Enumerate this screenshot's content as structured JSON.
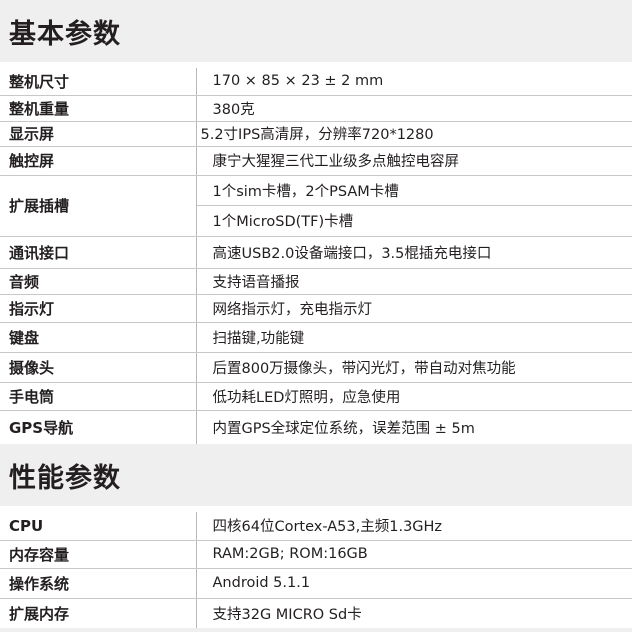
{
  "sections": [
    {
      "title": "基本参数",
      "rows": [
        {
          "label": "整机尺寸",
          "values": [
            "170 × 85 × 23 ± 2 mm"
          ]
        },
        {
          "label": "整机重量",
          "values": [
            "380克"
          ]
        },
        {
          "label": "显示屏",
          "values": [
            "5.2寸IPS高清屏，分辨率720*1280"
          ]
        },
        {
          "label": "触控屏",
          "values": [
            "康宁大猩猩三代工业级多点触控电容屏"
          ]
        },
        {
          "label": "扩展插槽",
          "values": [
            "1个sim卡槽，2个PSAM卡槽",
            "1个MicroSD(TF)卡槽"
          ]
        },
        {
          "label": "通讯接口",
          "values": [
            "高速USB2.0设备端接口，3.5棍插充电接口"
          ]
        },
        {
          "label": "音频",
          "values": [
            "支持语音播报"
          ]
        },
        {
          "label": "指示灯",
          "values": [
            "网络指示灯，充电指示灯"
          ]
        },
        {
          "label": "键盘",
          "values": [
            "扫描键,功能键"
          ]
        },
        {
          "label": "摄像头",
          "values": [
            "后置800万摄像头，带闪光灯，带自动对焦功能"
          ]
        },
        {
          "label": "手电筒",
          "values": [
            "低功耗LED灯照明，应急使用"
          ]
        },
        {
          "label": "GPS导航",
          "values": [
            "内置GPS全球定位系统，误差范围 ± 5m"
          ]
        }
      ]
    },
    {
      "title": "性能参数",
      "rows": [
        {
          "label": "CPU",
          "values": [
            "四核64位Cortex-A53,主频1.3GHz"
          ]
        },
        {
          "label": "内存容量",
          "values": [
            "RAM:2GB; ROM:16GB"
          ]
        },
        {
          "label": "操作系统",
          "values": [
            "Android 5.1.1"
          ]
        },
        {
          "label": "扩展内存",
          "values": [
            "支持32G MICRO Sd卡"
          ]
        }
      ]
    }
  ]
}
